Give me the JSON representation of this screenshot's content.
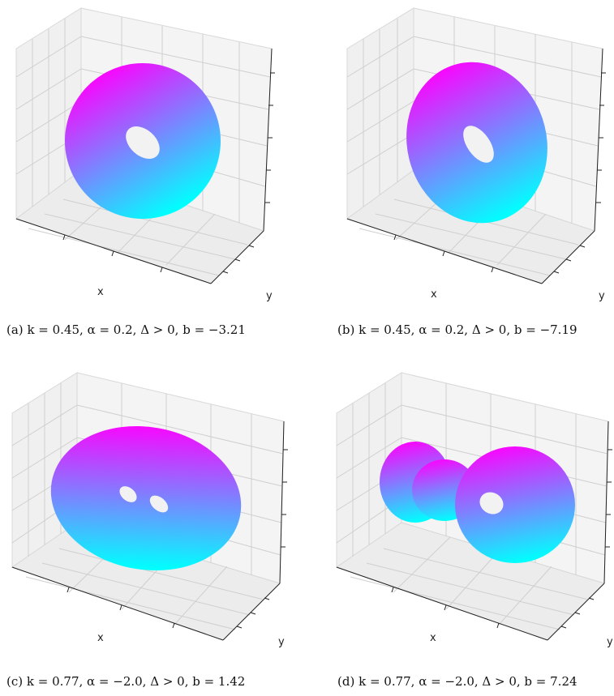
{
  "figure": {
    "panels": [
      {
        "id": "a",
        "axes": {
          "xlabel": "x",
          "ylabel": "y"
        },
        "caption": {
          "tag": "(a)",
          "text": "k = 0.45, α = 0.2, Δ > 0, b = −3.21"
        },
        "surface": {
          "shape": "torus",
          "holes": 1,
          "params": {
            "k": 0.45,
            "alpha": 0.2,
            "delta": "> 0",
            "b": -3.21
          }
        }
      },
      {
        "id": "b",
        "axes": {
          "xlabel": "x",
          "ylabel": "y"
        },
        "caption": {
          "tag": "(b)",
          "text": "k = 0.45, α = 0.2, Δ > 0, b = −7.19"
        },
        "surface": {
          "shape": "torus",
          "holes": 1,
          "params": {
            "k": 0.45,
            "alpha": 0.2,
            "delta": "> 0",
            "b": -7.19
          }
        }
      },
      {
        "id": "c",
        "axes": {
          "xlabel": "x",
          "ylabel": "y"
        },
        "caption": {
          "tag": "(c)",
          "text": "k = 0.77, α = −2.0, Δ > 0, b = 1.42"
        },
        "surface": {
          "shape": "double torus",
          "holes": 2,
          "params": {
            "k": 0.77,
            "alpha": -2.0,
            "delta": "> 0",
            "b": 1.42
          }
        }
      },
      {
        "id": "d",
        "axes": {
          "xlabel": "x",
          "ylabel": "y"
        },
        "caption": {
          "tag": "(d)",
          "text": "k = 0.77, α = −2.0, Δ > 0, b = 7.24"
        },
        "surface": {
          "shape": "dumbbell torus",
          "holes": 1,
          "params": {
            "k": 0.77,
            "alpha": -2.0,
            "delta": "> 0",
            "b": 7.24
          }
        }
      }
    ],
    "colors": {
      "surface_top": "#ff00ff",
      "surface_bottom": "#00ffff",
      "pane": "#efefef",
      "grid": "#cfcfcf",
      "axis": "#222222"
    }
  }
}
